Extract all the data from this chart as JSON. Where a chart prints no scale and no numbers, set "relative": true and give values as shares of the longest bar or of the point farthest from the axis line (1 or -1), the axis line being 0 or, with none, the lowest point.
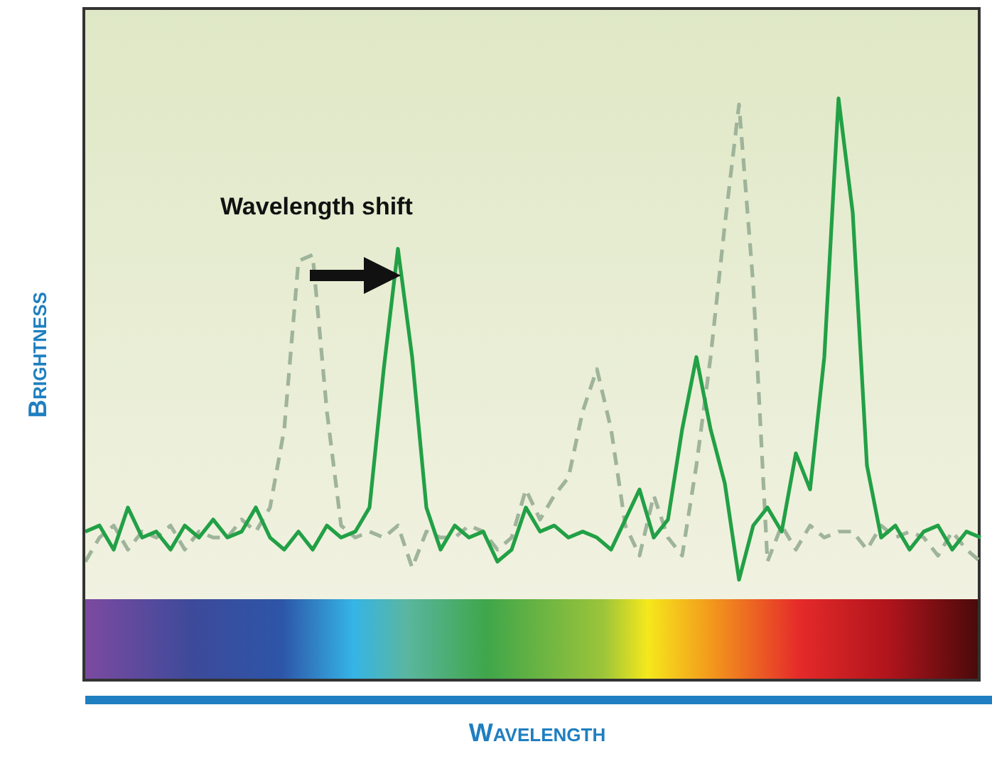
{
  "chart_data": {
    "type": "line",
    "xlabel": "Wavelength",
    "ylabel": "Brightness",
    "annotations": [
      "Wavelength shift"
    ],
    "relative": true,
    "grid": false,
    "marker": "none",
    "categories": [
      null,
      null,
      null,
      null,
      null,
      null,
      null,
      null,
      null,
      null,
      null,
      null,
      null,
      null,
      null,
      null,
      null,
      null,
      null,
      null,
      null,
      null,
      null,
      null,
      null,
      null,
      null,
      null,
      null,
      null,
      null,
      null,
      null,
      null,
      null,
      null,
      null,
      null,
      null,
      null,
      null,
      null,
      null,
      null,
      null,
      null,
      null,
      null,
      null,
      null,
      null,
      null,
      null,
      null,
      null,
      null,
      null,
      null,
      null,
      null,
      null,
      null,
      null,
      null
    ],
    "series": [
      {
        "color": "#9fb49a",
        "line_style": "dashed",
        "values": [
          0.23,
          0.27,
          0.29,
          0.25,
          0.28,
          0.27,
          0.29,
          0.25,
          0.28,
          0.27,
          0.27,
          0.3,
          0.28,
          0.32,
          0.45,
          0.73,
          0.74,
          0.48,
          0.29,
          0.27,
          0.28,
          0.27,
          0.29,
          0.22,
          0.28,
          0.27,
          0.27,
          0.29,
          0.28,
          0.25,
          0.27,
          0.35,
          0.3,
          0.34,
          0.37,
          0.48,
          0.55,
          0.45,
          0.29,
          0.24,
          0.34,
          0.27,
          0.24,
          0.39,
          0.57,
          0.79,
          0.99,
          0.69,
          0.23,
          0.29,
          0.25,
          0.29,
          0.27,
          0.28,
          0.28,
          0.25,
          0.29,
          0.27,
          0.28,
          0.27,
          0.24,
          0.28,
          0.25,
          0.23
        ]
      },
      {
        "color": "#22a046",
        "line_style": "solid",
        "values": [
          0.28,
          0.29,
          0.25,
          0.32,
          0.27,
          0.28,
          0.25,
          0.29,
          0.27,
          0.3,
          0.27,
          0.28,
          0.32,
          0.27,
          0.25,
          0.28,
          0.25,
          0.29,
          0.27,
          0.28,
          0.32,
          0.55,
          0.75,
          0.57,
          0.32,
          0.25,
          0.29,
          0.27,
          0.28,
          0.23,
          0.25,
          0.32,
          0.28,
          0.29,
          0.27,
          0.28,
          0.27,
          0.25,
          0.3,
          0.35,
          0.27,
          0.3,
          0.45,
          0.57,
          0.45,
          0.36,
          0.2,
          0.29,
          0.32,
          0.28,
          0.41,
          0.35,
          0.57,
          1,
          0.81,
          0.39,
          0.27,
          0.29,
          0.25,
          0.28,
          0.29,
          0.25,
          0.28,
          0.27
        ]
      }
    ]
  }
}
